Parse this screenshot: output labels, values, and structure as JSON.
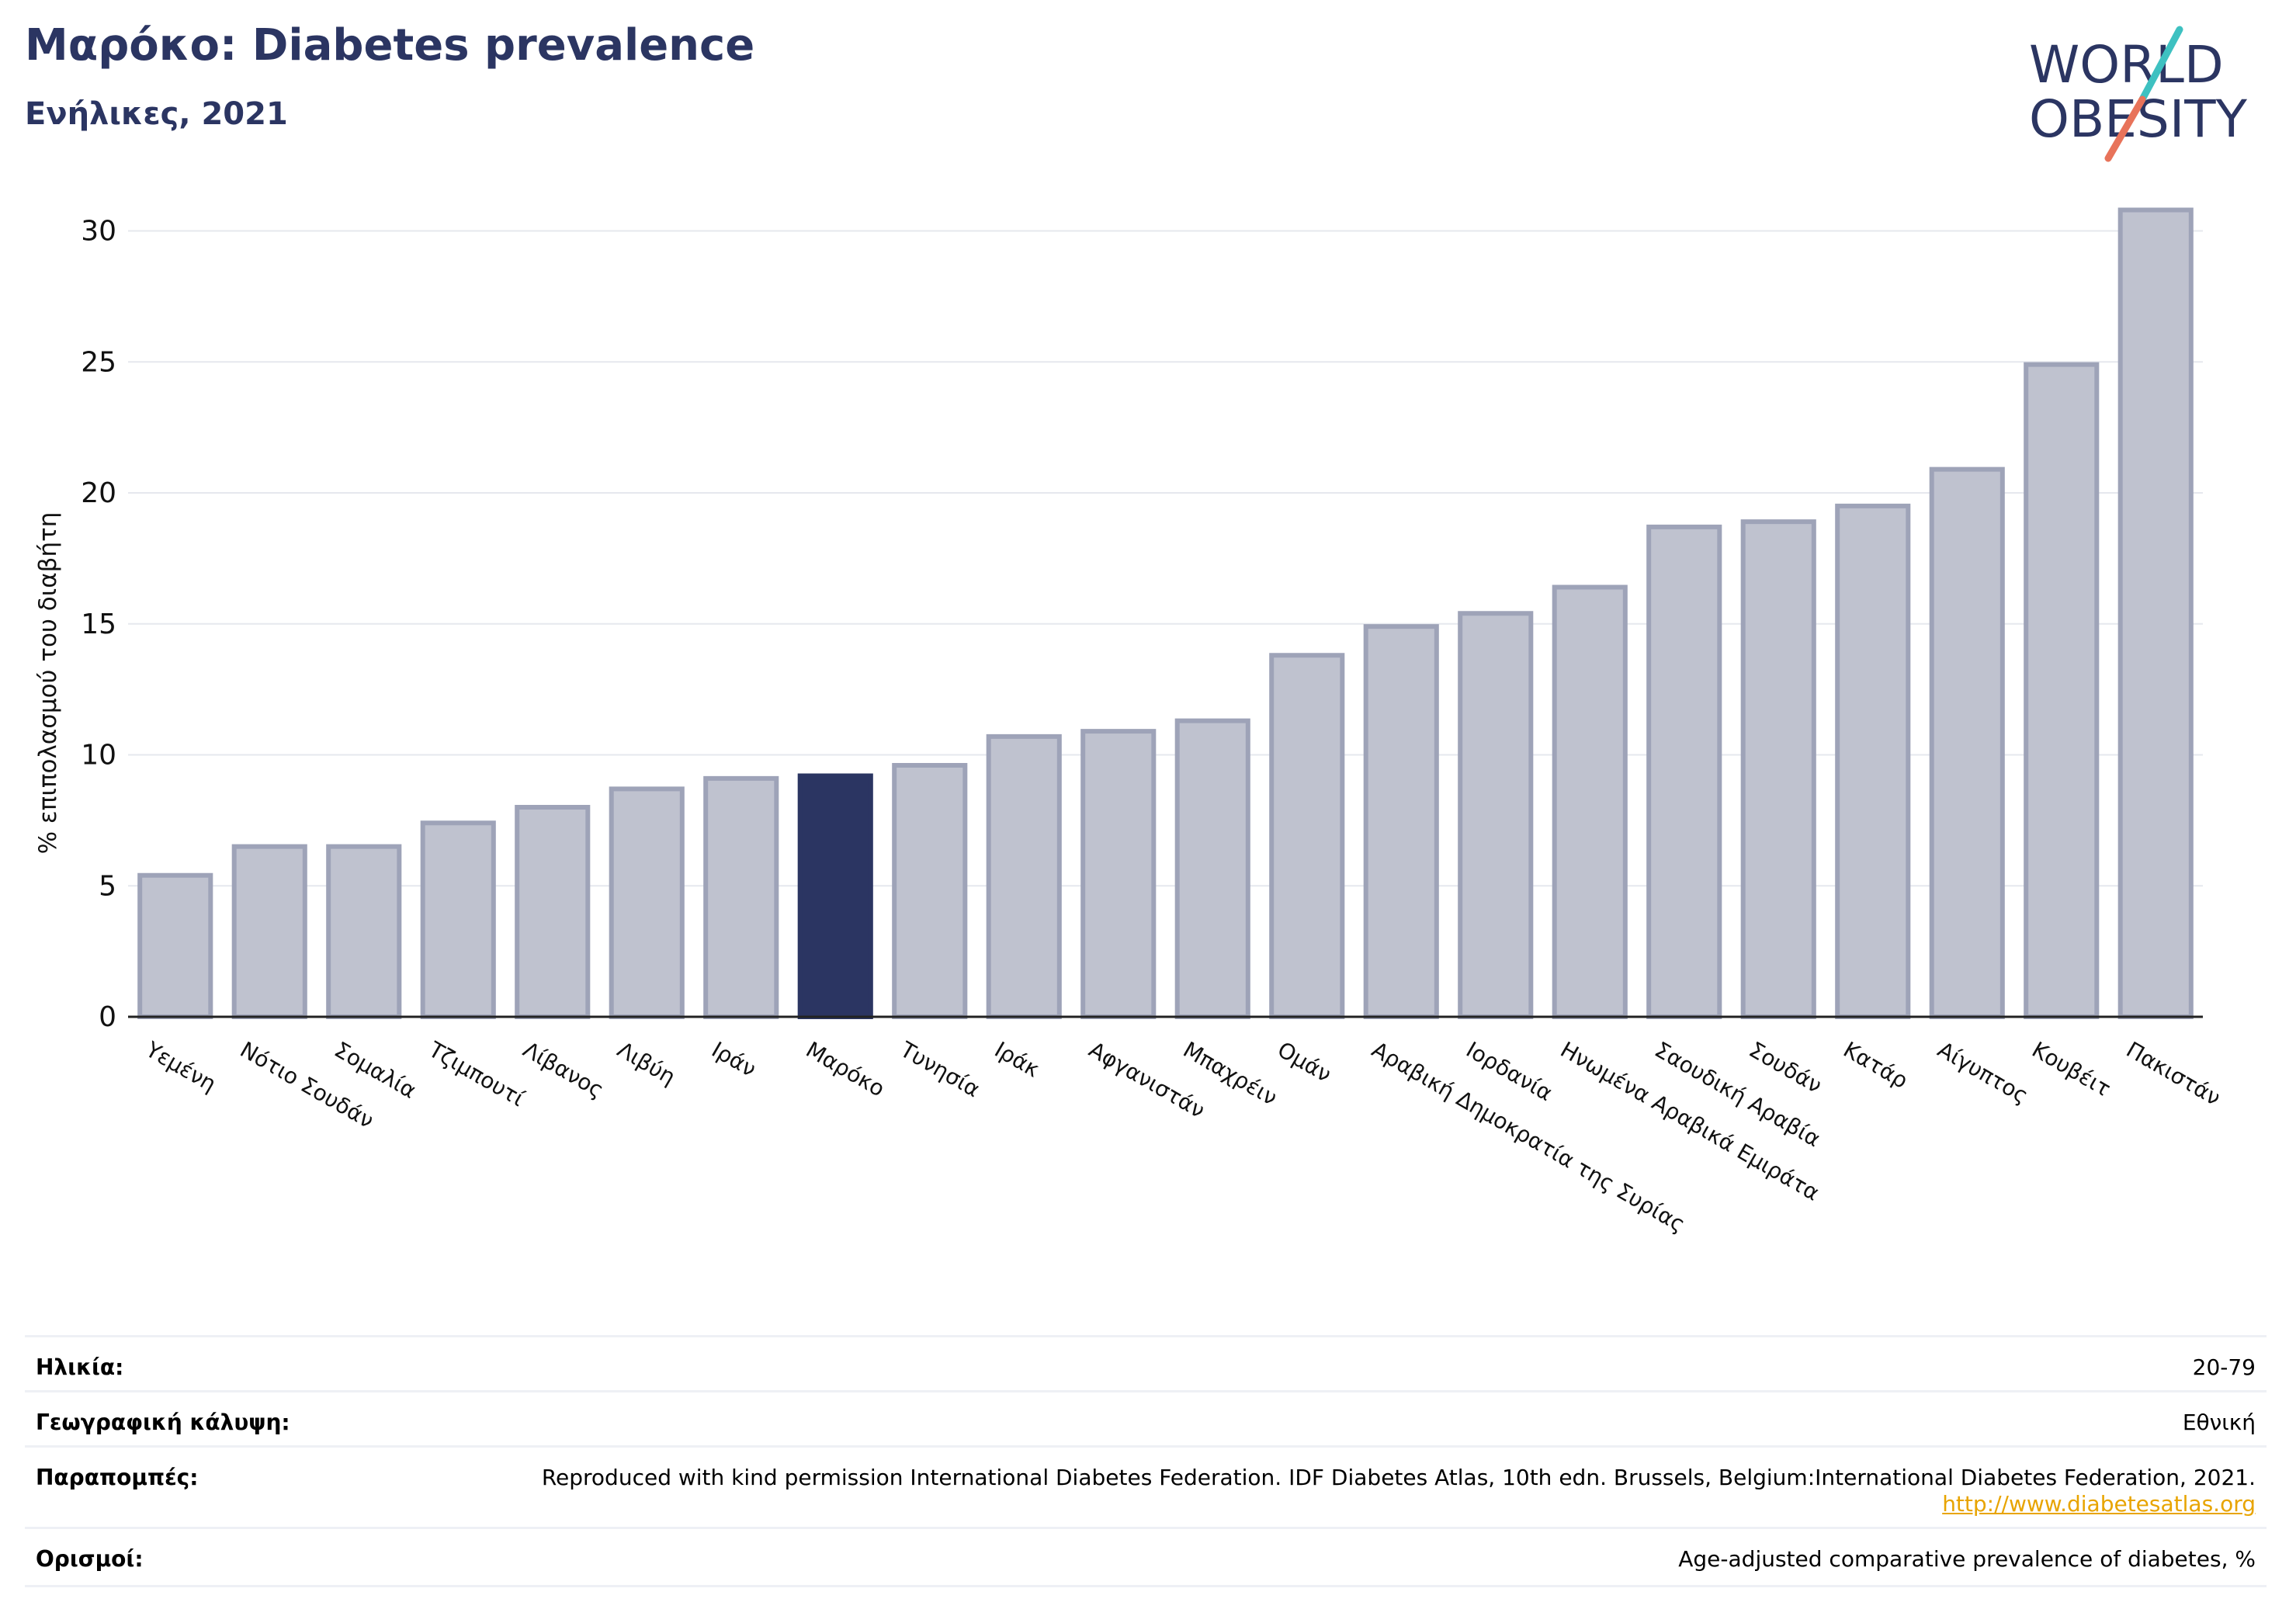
{
  "header": {
    "title": "Μαρόκο: Diabetes prevalence",
    "subtitle": "Ενήλικες, 2021"
  },
  "logo": {
    "line1": "WORLD",
    "line2": "OBESITY",
    "colors": {
      "text": "#2b3562",
      "slash_top": "#3ec1c1",
      "slash_bottom": "#e8735a"
    }
  },
  "chart_data": {
    "type": "bar",
    "title": "Μαρόκο: Diabetes prevalence",
    "subtitle": "Ενήλικες, 2021",
    "ylabel": "% επιπολασμού του διαβήτη",
    "xlabel": "",
    "ylim": [
      0,
      32
    ],
    "yticks": [
      0,
      5,
      10,
      15,
      20,
      25,
      30
    ],
    "grid": true,
    "highlight": "Μαρόκο",
    "colors": {
      "bar": "#bfc2cf",
      "bar_edge": "#9ea3b8",
      "highlight": "#2b3562",
      "grid": "#e6e8ee"
    },
    "categories": [
      "Υεμένη",
      "Νότιο Σουδάν",
      "Σομαλία",
      "Τζιμπουτί",
      "Λίβανος",
      "Λιβύη",
      "Ιράν",
      "Μαρόκο",
      "Τυνησία",
      "Ιράκ",
      "Αφγανιστάν",
      "Μπαχρέιν",
      "Ομάν",
      "Αραβική Δημοκρατία της Συρίας",
      "Ιορδανία",
      "Ηνωμένα Αραβικά Εμιράτα",
      "Σαουδική Αραβία",
      "Σουδάν",
      "Κατάρ",
      "Αίγυπτος",
      "Κουβέιτ",
      "Πακιστάν"
    ],
    "values": [
      5.4,
      6.5,
      6.5,
      7.4,
      8.0,
      8.7,
      9.1,
      9.2,
      9.6,
      10.7,
      10.9,
      11.3,
      13.8,
      14.9,
      15.4,
      16.4,
      18.7,
      18.9,
      19.5,
      20.9,
      24.9,
      30.8
    ]
  },
  "meta": [
    {
      "label": "Ηλικία:",
      "value": "20-79"
    },
    {
      "label": "Γεωγραφική κάλυψη:",
      "value": "Εθνική"
    },
    {
      "label": "Παραπομπές:",
      "value": "Reproduced with kind permission International Diabetes Federation.  IDF Diabetes Atlas, 10th edn. Brussels, Belgium:International Diabetes Federation, 2021.",
      "link": "http://www.diabetesatlas.org"
    },
    {
      "label": "Ορισμοί:",
      "value": "Age-adjusted comparative prevalence of diabetes, %"
    }
  ]
}
